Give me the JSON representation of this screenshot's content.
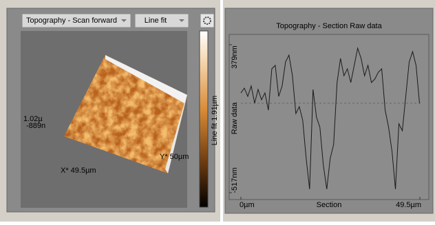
{
  "toolbar": {
    "channel": "Topography - Scan forward",
    "filter": "Line fit"
  },
  "image": {
    "colorbar_label": "Line fit 1.91µm",
    "z_top": "1.02µ",
    "z_bottom": "-889n",
    "x_label": "X* 49.5µm",
    "y_label": "Y* 50µm"
  },
  "chart_data": {
    "type": "line",
    "title": "Topography - Section   Raw data",
    "x_label": "Section",
    "y_label": "Raw data",
    "color": "#1a1a1a",
    "x": [
      0,
      0.95,
      1.9,
      2.85,
      3.8,
      4.75,
      5.7,
      6.65,
      7.6,
      8.55,
      9.5,
      10.45,
      11.4,
      12.35,
      13.3,
      14.25,
      15.2,
      16.15,
      17.1,
      18.05,
      19,
      19.95,
      20.9,
      21.85,
      22.8,
      23.75,
      24.7,
      25.65,
      26.6,
      27.55,
      28.5,
      29.45,
      30.4,
      31.35,
      32.3,
      33.25,
      34.2,
      35.15,
      36.1,
      37.05,
      38,
      38.95,
      39.9,
      40.85,
      41.8,
      42.75,
      43.7,
      44.65,
      45.6,
      46.55,
      47.5,
      48.45,
      49.4
    ],
    "values": [
      87,
      116,
      66,
      129,
      25,
      108,
      46,
      87,
      -17,
      233,
      254,
      66,
      129,
      275,
      316,
      191,
      -38,
      4,
      -79,
      -309,
      -496,
      108,
      -59,
      -121,
      -350,
      -496,
      -309,
      -225,
      150,
      296,
      191,
      233,
      150,
      254,
      358,
      296,
      191,
      254,
      150,
      171,
      212,
      233,
      -17,
      -121,
      -267,
      -496,
      -100,
      -142,
      66,
      275,
      337,
      254,
      25
    ],
    "xlim": [
      0,
      49.5
    ],
    "ylim": [
      -517,
      379
    ],
    "xticks": [
      {
        "value": 0,
        "label": "0µm"
      },
      {
        "value": 49.5,
        "label": "49.5µm"
      }
    ],
    "yticks": [
      {
        "value": -517,
        "label": "-517nm"
      },
      {
        "value": 379,
        "label": "379nm"
      }
    ]
  }
}
